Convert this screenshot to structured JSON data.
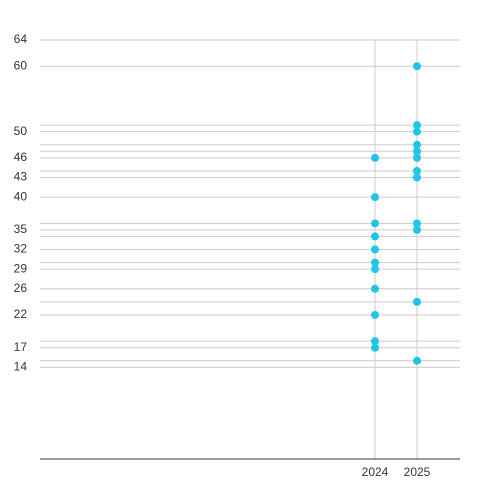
{
  "chart_data": {
    "type": "scatter",
    "categories": [
      "2024",
      "2025"
    ],
    "values": [
      [
        46,
        40,
        36,
        34,
        32,
        30,
        29,
        26,
        22,
        18,
        17
      ],
      [
        60,
        51,
        50,
        48,
        47,
        46,
        44,
        43,
        36,
        35,
        24,
        15
      ]
    ],
    "color": "#1fc6e8",
    "ylim": [
      0,
      64
    ],
    "yticks": [
      64,
      60,
      50,
      46,
      43,
      40,
      35,
      32,
      29,
      26,
      22,
      17,
      14
    ],
    "y_gridlines": [
      51,
      48,
      47,
      44,
      36,
      34,
      30,
      24,
      18,
      15
    ],
    "grid": true
  }
}
